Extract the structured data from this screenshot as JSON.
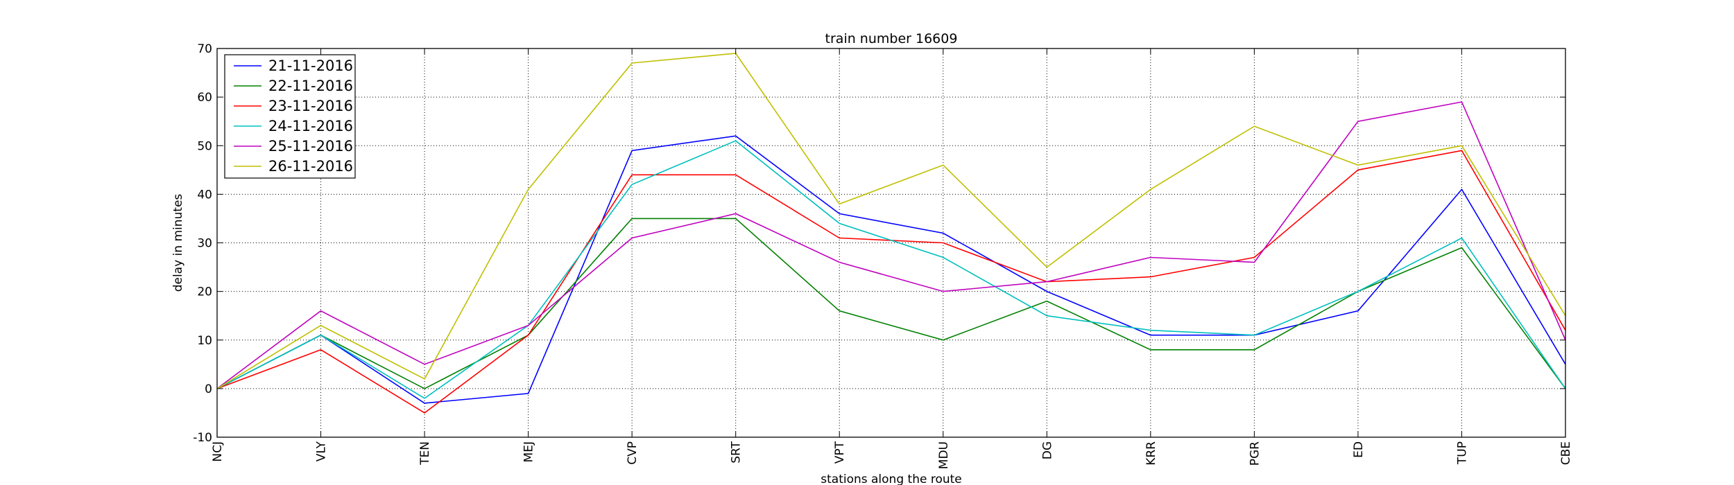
{
  "chart_data": {
    "type": "line",
    "title": "train number 16609",
    "xlabel": "stations along the route",
    "ylabel": "delay in minutes",
    "categories": [
      "NCJ",
      "VLY",
      "TEN",
      "MEJ",
      "CVP",
      "SRT",
      "VPT",
      "MDU",
      "DG",
      "KRR",
      "PGR",
      "ED",
      "TUP",
      "CBE"
    ],
    "ylim": [
      -10,
      70
    ],
    "yticks": [
      -10,
      0,
      10,
      20,
      30,
      40,
      50,
      60,
      70
    ],
    "grid": true,
    "legend_position": "top-left",
    "series": [
      {
        "name": "21-11-2016",
        "color": "#0000ff",
        "values": [
          0,
          11,
          -3,
          -1,
          49,
          52,
          36,
          32,
          20,
          11,
          11,
          16,
          41,
          5
        ]
      },
      {
        "name": "22-11-2016",
        "color": "#008000",
        "values": [
          0,
          11,
          0,
          11,
          35,
          35,
          16,
          10,
          18,
          8,
          8,
          20,
          29,
          0
        ]
      },
      {
        "name": "23-11-2016",
        "color": "#ff0000",
        "values": [
          0,
          8,
          -5,
          11,
          44,
          44,
          31,
          30,
          22,
          23,
          27,
          45,
          49,
          12
        ]
      },
      {
        "name": "24-11-2016",
        "color": "#00bfbf",
        "values": [
          0,
          11,
          -2,
          13,
          42,
          51,
          34,
          27,
          15,
          12,
          11,
          20,
          31,
          0
        ]
      },
      {
        "name": "25-11-2016",
        "color": "#bf00bf",
        "values": [
          0,
          16,
          5,
          13,
          31,
          36,
          26,
          20,
          22,
          27,
          26,
          55,
          59,
          10
        ]
      },
      {
        "name": "26-11-2016",
        "color": "#bfbf00",
        "values": [
          0,
          13,
          2,
          41,
          67,
          69,
          38,
          46,
          25,
          41,
          54,
          46,
          50,
          15
        ]
      }
    ]
  }
}
